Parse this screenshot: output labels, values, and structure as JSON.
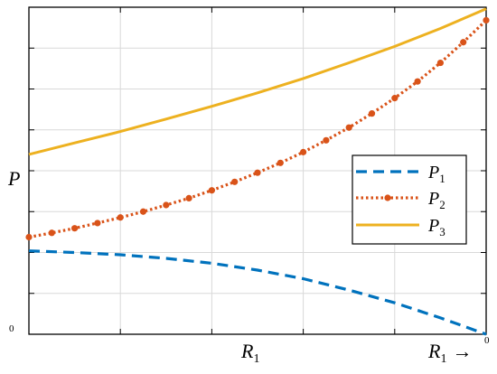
{
  "chart_data": {
    "type": "line",
    "ylabel": "P",
    "y_origin_label": "0",
    "xlabel": "R",
    "xlabel_sub": "1",
    "x_end_label": "R",
    "x_end_label_sub": "1",
    "x_end_arrow": "→",
    "x_end_value": "0",
    "xlim": [
      0,
      1
    ],
    "ylim": [
      0,
      1
    ],
    "grid": true,
    "legend_position": "center-right",
    "series": [
      {
        "name": "P",
        "sub": "1",
        "color": "#0072BD",
        "style": "dashed",
        "x": [
          0,
          0.1,
          0.2,
          0.3,
          0.4,
          0.5,
          0.6,
          0.7,
          0.8,
          0.9,
          1.0
        ],
        "y": [
          0.255,
          0.25,
          0.243,
          0.232,
          0.217,
          0.196,
          0.17,
          0.135,
          0.096,
          0.05,
          0.0
        ]
      },
      {
        "name": "P",
        "sub": "2",
        "color": "#D95319",
        "style": "dotted-marker",
        "x": [
          0,
          0.05,
          0.1,
          0.15,
          0.2,
          0.25,
          0.3,
          0.35,
          0.4,
          0.45,
          0.5,
          0.55,
          0.6,
          0.65,
          0.7,
          0.75,
          0.8,
          0.85,
          0.9,
          0.95,
          1.0
        ],
        "y": [
          0.297,
          0.31,
          0.324,
          0.34,
          0.357,
          0.375,
          0.395,
          0.416,
          0.44,
          0.466,
          0.494,
          0.524,
          0.557,
          0.593,
          0.632,
          0.675,
          0.722,
          0.773,
          0.83,
          0.893,
          0.96
        ]
      },
      {
        "name": "P",
        "sub": "3",
        "color": "#EDB120",
        "style": "solid",
        "x": [
          0,
          0.1,
          0.2,
          0.3,
          0.4,
          0.5,
          0.6,
          0.7,
          0.8,
          0.9,
          1.0
        ],
        "y": [
          0.55,
          0.585,
          0.62,
          0.658,
          0.697,
          0.738,
          0.782,
          0.83,
          0.88,
          0.935,
          0.995
        ]
      }
    ]
  }
}
